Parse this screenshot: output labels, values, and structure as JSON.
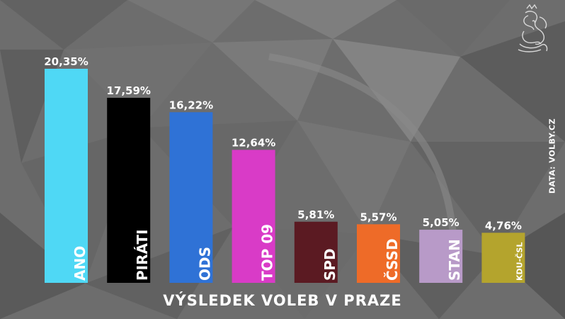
{
  "chart_data": {
    "type": "bar",
    "title": "VÝSLEDEK VOLEB V PRAZE",
    "categories": [
      "ANO",
      "PIRÁTI",
      "ODS",
      "TOP 09",
      "SPD",
      "ČSSD",
      "STAN",
      "KDU-ČSL"
    ],
    "values": [
      20.35,
      17.59,
      16.22,
      12.64,
      5.81,
      5.57,
      5.05,
      4.76
    ],
    "value_labels": [
      "20,35%",
      "17,59%",
      "16,22%",
      "12,64%",
      "5,81%",
      "5,57%",
      "5,05%",
      "4,76%"
    ],
    "colors": [
      "#4fd8f5",
      "#000000",
      "#2f72d6",
      "#d93bc7",
      "#5b1a22",
      "#ee6b28",
      "#b89ac8",
      "#b4a42d"
    ],
    "ylim": [
      0,
      20.35
    ],
    "grid": false,
    "legend": "none"
  },
  "source": "DATA: VOLBY.CZ"
}
